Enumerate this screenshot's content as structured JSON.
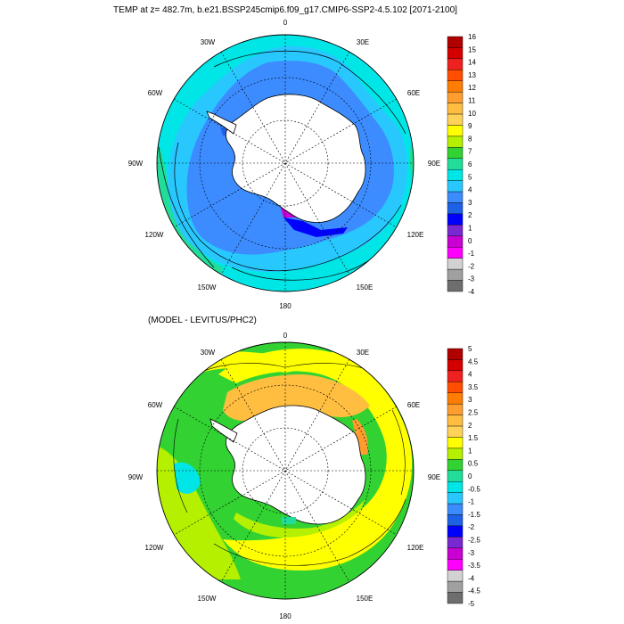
{
  "top_panel": {
    "title": "TEMP at z= 482.7m, b.e21.BSSP245cmip6.f09_g17.CMIP6-SSP2-4.5.102 [2071-2100]",
    "lon_labels": [
      "0",
      "30E",
      "60E",
      "90E",
      "120E",
      "150E",
      "180",
      "150W",
      "120W",
      "90W",
      "60W",
      "30W"
    ],
    "colorbar": {
      "labels": [
        "16",
        "15",
        "14",
        "13",
        "12",
        "11",
        "10",
        "9",
        "8",
        "7",
        "6",
        "5",
        "4",
        "3",
        "2",
        "1",
        "0",
        "-1",
        "-2",
        "-3",
        "-4"
      ],
      "colors": [
        "#b00000",
        "#d40000",
        "#ee2020",
        "#ff4e00",
        "#ff7d00",
        "#ff9d30",
        "#ffbe40",
        "#ffd25a",
        "#ffff00",
        "#b4f000",
        "#32d232",
        "#22dc9a",
        "#00e6e6",
        "#28c8ff",
        "#3c8cff",
        "#1e60e6",
        "#0000ff",
        "#7a28d2",
        "#c800d2",
        "#ff00ff",
        "#d2d2d2",
        "#a0a0a0",
        "#6e6e6e"
      ]
    }
  },
  "bottom_panel": {
    "title": "(MODEL - LEVITUS/PHC2)",
    "lon_labels": [
      "0",
      "30E",
      "60E",
      "90E",
      "120E",
      "150E",
      "180",
      "150W",
      "120W",
      "90W",
      "60W",
      "30W"
    ],
    "colorbar": {
      "labels": [
        "5",
        "4.5",
        "4",
        "3.5",
        "3",
        "2.5",
        "2",
        "1.5",
        "1",
        "0.5",
        "0",
        "-0.5",
        "-1",
        "-1.5",
        "-2",
        "-2.5",
        "-3",
        "-3.5",
        "-4",
        "-4.5",
        "-5"
      ],
      "colors": [
        "#b00000",
        "#d40000",
        "#ee2020",
        "#ff4e00",
        "#ff7d00",
        "#ff9d30",
        "#ffbe40",
        "#ffd25a",
        "#ffff00",
        "#b4f000",
        "#32d232",
        "#22dc9a",
        "#00e6e6",
        "#28c8ff",
        "#3c8cff",
        "#1e60e6",
        "#0000ff",
        "#7a28d2",
        "#c800d2",
        "#ff00ff",
        "#d2d2d2",
        "#a0a0a0",
        "#6e6e6e"
      ]
    }
  },
  "colors": {
    "land": "#ffffff",
    "outline": "#000000"
  }
}
